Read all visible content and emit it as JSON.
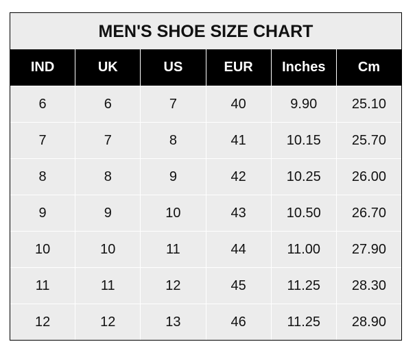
{
  "title": "MEN'S SHOE SIZE CHART",
  "columns": [
    "IND",
    "UK",
    "US",
    "EUR",
    "Inches",
    "Cm"
  ],
  "rows": [
    [
      "6",
      "6",
      "7",
      "40",
      "9.90",
      "25.10"
    ],
    [
      "7",
      "7",
      "8",
      "41",
      "10.15",
      "25.70"
    ],
    [
      "8",
      "8",
      "9",
      "42",
      "10.25",
      "26.00"
    ],
    [
      "9",
      "9",
      "10",
      "43",
      "10.50",
      "26.70"
    ],
    [
      "10",
      "10",
      "11",
      "44",
      "11.00",
      "27.90"
    ],
    [
      "11",
      "11",
      "12",
      "45",
      "11.25",
      "28.30"
    ],
    [
      "12",
      "12",
      "13",
      "46",
      "11.25",
      "28.90"
    ]
  ],
  "colors": {
    "header_bg": "#000000",
    "cell_bg": "#ececec",
    "grid": "#ffffff"
  }
}
